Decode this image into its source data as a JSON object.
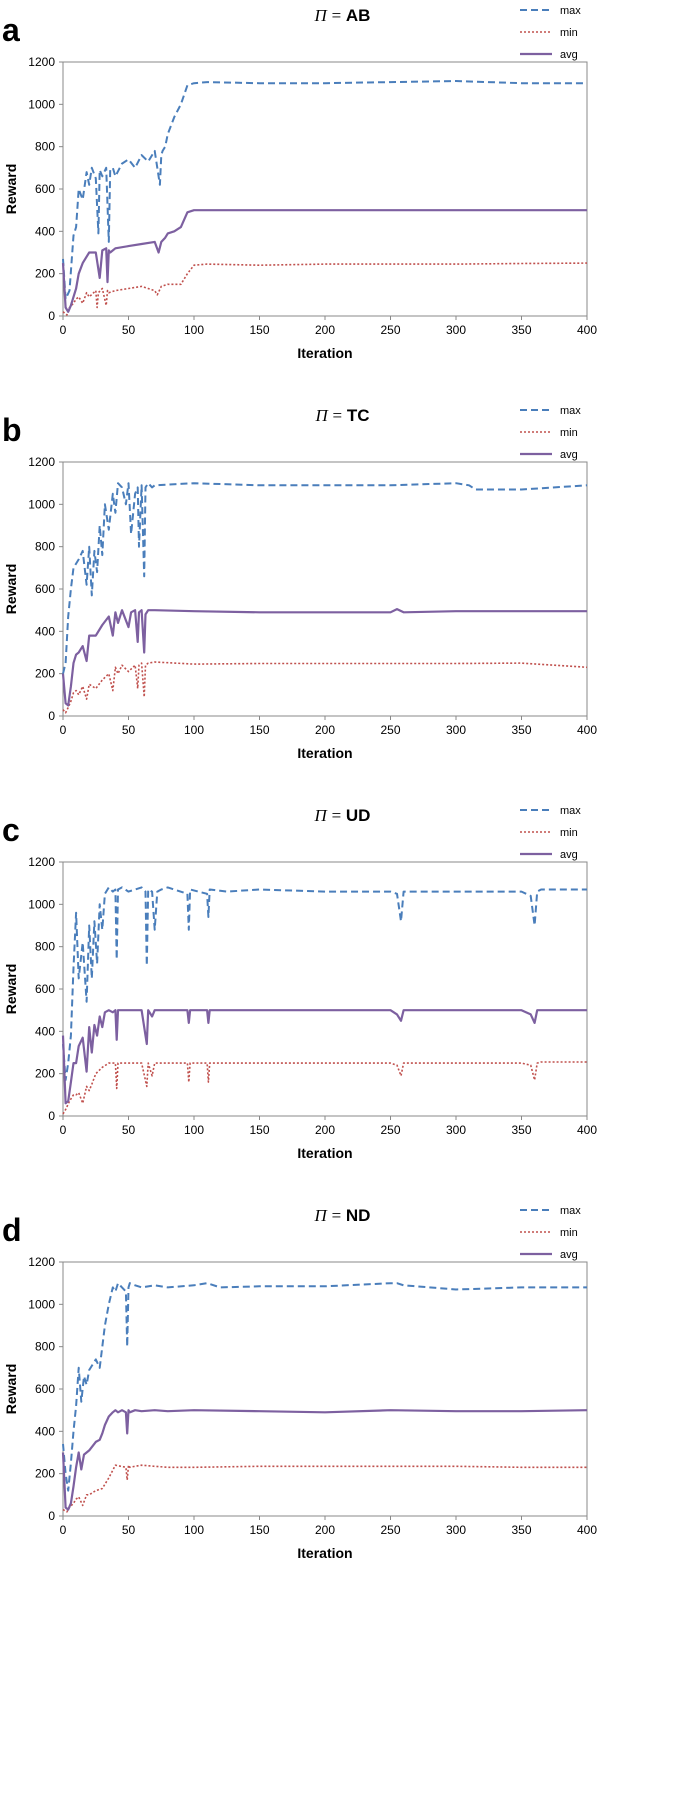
{
  "legend_labels": {
    "max": "max",
    "min": "min",
    "avg": "avg"
  },
  "colors": {
    "max": "#4a7ebb",
    "min": "#c0504d",
    "avg": "#7d60a0"
  },
  "chart_data": [
    {
      "type": "line",
      "panel": "a",
      "title_prefix": "Π",
      "title_eq": "=",
      "title_condition": "AB",
      "xlabel": "Iteration",
      "ylabel": "Reward",
      "xlim": [
        0,
        400
      ],
      "ylim": [
        0,
        1200
      ],
      "xticks": [
        0,
        50,
        100,
        150,
        200,
        250,
        300,
        350,
        400
      ],
      "yticks": [
        0,
        200,
        400,
        600,
        800,
        1000,
        1200
      ],
      "series": [
        {
          "name": "max",
          "style": "dashed",
          "x": [
            0,
            2,
            5,
            8,
            10,
            12,
            15,
            18,
            20,
            22,
            25,
            27,
            28,
            30,
            33,
            35,
            36,
            38,
            40,
            45,
            50,
            55,
            60,
            65,
            70,
            74,
            75,
            76,
            78,
            80,
            85,
            90,
            95,
            100,
            110,
            150,
            200,
            250,
            300,
            350,
            400
          ],
          "y": [
            270,
            80,
            120,
            380,
            420,
            600,
            550,
            680,
            620,
            700,
            650,
            390,
            690,
            660,
            700,
            350,
            690,
            700,
            660,
            720,
            740,
            700,
            760,
            730,
            780,
            620,
            760,
            780,
            800,
            860,
            940,
            1000,
            1090,
            1100,
            1105,
            1100,
            1100,
            1105,
            1110,
            1100,
            1100
          ]
        },
        {
          "name": "min",
          "style": "dotted",
          "x": [
            0,
            3,
            5,
            8,
            10,
            12,
            15,
            18,
            20,
            25,
            26,
            27,
            30,
            33,
            34,
            35,
            40,
            50,
            60,
            70,
            72,
            75,
            80,
            90,
            95,
            100,
            110,
            150,
            200,
            250,
            300,
            350,
            400
          ],
          "y": [
            20,
            5,
            40,
            60,
            80,
            90,
            60,
            110,
            90,
            120,
            40,
            110,
            130,
            50,
            120,
            110,
            120,
            130,
            140,
            120,
            100,
            140,
            150,
            150,
            200,
            240,
            245,
            240,
            245,
            245,
            245,
            248,
            250
          ]
        },
        {
          "name": "avg",
          "style": "solid",
          "x": [
            0,
            2,
            4,
            6,
            8,
            10,
            12,
            15,
            18,
            20,
            25,
            28,
            30,
            33,
            34,
            35,
            36,
            40,
            50,
            60,
            70,
            73,
            75,
            78,
            80,
            85,
            90,
            95,
            100,
            150,
            200,
            250,
            300,
            350,
            400
          ],
          "y": [
            250,
            40,
            20,
            50,
            90,
            130,
            200,
            250,
            280,
            300,
            300,
            180,
            310,
            320,
            160,
            310,
            300,
            320,
            330,
            340,
            350,
            300,
            350,
            370,
            390,
            400,
            420,
            490,
            500,
            500,
            500,
            500,
            500,
            500,
            500
          ]
        }
      ]
    },
    {
      "type": "line",
      "panel": "b",
      "title_prefix": "Π",
      "title_eq": "=",
      "title_condition": "TC",
      "xlabel": "Iteration",
      "ylabel": "Reward",
      "xlim": [
        0,
        400
      ],
      "ylim": [
        0,
        1200
      ],
      "xticks": [
        0,
        50,
        100,
        150,
        200,
        250,
        300,
        350,
        400
      ],
      "yticks": [
        0,
        200,
        400,
        600,
        800,
        1000,
        1200
      ],
      "series": [
        {
          "name": "max",
          "style": "dashed",
          "x": [
            0,
            2,
            4,
            6,
            8,
            10,
            12,
            15,
            18,
            20,
            22,
            24,
            26,
            28,
            30,
            32,
            35,
            38,
            40,
            42,
            45,
            48,
            50,
            52,
            55,
            57,
            58,
            60,
            62,
            63,
            65,
            68,
            70,
            100,
            150,
            200,
            250,
            300,
            310,
            315,
            350,
            400
          ],
          "y": [
            200,
            250,
            470,
            600,
            700,
            720,
            740,
            780,
            620,
            800,
            570,
            780,
            680,
            900,
            760,
            1000,
            880,
            1050,
            960,
            1100,
            1080,
            1000,
            1100,
            860,
            1050,
            1080,
            800,
            1090,
            660,
            1080,
            1100,
            1080,
            1090,
            1100,
            1090,
            1090,
            1090,
            1100,
            1090,
            1070,
            1070,
            1090
          ]
        },
        {
          "name": "min",
          "style": "dotted",
          "x": [
            0,
            2,
            4,
            6,
            8,
            10,
            12,
            15,
            18,
            20,
            25,
            30,
            35,
            38,
            40,
            42,
            45,
            50,
            55,
            57,
            58,
            60,
            62,
            63,
            65,
            70,
            100,
            150,
            200,
            250,
            300,
            350,
            400
          ],
          "y": [
            30,
            15,
            40,
            70,
            110,
            120,
            100,
            140,
            80,
            150,
            130,
            170,
            200,
            120,
            230,
            200,
            240,
            210,
            240,
            130,
            240,
            250,
            90,
            240,
            250,
            255,
            245,
            248,
            248,
            248,
            248,
            250,
            230
          ]
        },
        {
          "name": "avg",
          "style": "solid",
          "x": [
            0,
            2,
            4,
            6,
            8,
            10,
            12,
            15,
            18,
            20,
            25,
            30,
            35,
            38,
            40,
            42,
            45,
            50,
            52,
            55,
            57,
            58,
            60,
            62,
            63,
            65,
            70,
            100,
            150,
            200,
            250,
            255,
            260,
            300,
            350,
            400
          ],
          "y": [
            200,
            60,
            50,
            140,
            250,
            290,
            300,
            330,
            260,
            380,
            380,
            430,
            470,
            380,
            490,
            440,
            500,
            420,
            490,
            500,
            350,
            490,
            500,
            300,
            480,
            500,
            500,
            495,
            490,
            490,
            490,
            505,
            490,
            495,
            495,
            495
          ]
        }
      ]
    },
    {
      "type": "line",
      "panel": "c",
      "title_prefix": "Π",
      "title_eq": "=",
      "title_condition": "UD",
      "xlabel": "Iteration",
      "ylabel": "Reward",
      "xlim": [
        0,
        400
      ],
      "ylim": [
        0,
        1200
      ],
      "xticks": [
        0,
        50,
        100,
        150,
        200,
        250,
        300,
        350,
        400
      ],
      "yticks": [
        0,
        200,
        400,
        600,
        800,
        1000,
        1200
      ],
      "series": [
        {
          "name": "max",
          "style": "dashed",
          "x": [
            0,
            2,
            4,
            6,
            8,
            10,
            12,
            15,
            18,
            20,
            22,
            24,
            26,
            28,
            30,
            32,
            35,
            38,
            40,
            41,
            42,
            45,
            50,
            55,
            60,
            63,
            64,
            65,
            68,
            70,
            72,
            75,
            80,
            95,
            96,
            97,
            110,
            111,
            112,
            125,
            150,
            200,
            250,
            255,
            258,
            260,
            300,
            350,
            357,
            360,
            362,
            365,
            400
          ],
          "y": [
            340,
            170,
            250,
            380,
            700,
            960,
            650,
            820,
            540,
            900,
            650,
            920,
            720,
            1000,
            880,
            1050,
            1080,
            1060,
            1070,
            740,
            1070,
            1080,
            1060,
            1070,
            1080,
            1060,
            710,
            1070,
            1060,
            880,
            1060,
            1070,
            1080,
            1050,
            880,
            1070,
            1050,
            940,
            1070,
            1060,
            1070,
            1060,
            1060,
            1050,
            920,
            1060,
            1060,
            1060,
            1040,
            900,
            1060,
            1070,
            1070
          ]
        },
        {
          "name": "min",
          "style": "dotted",
          "x": [
            0,
            2,
            5,
            8,
            10,
            12,
            15,
            18,
            20,
            22,
            25,
            30,
            35,
            40,
            41,
            42,
            50,
            60,
            64,
            65,
            68,
            70,
            95,
            96,
            97,
            110,
            111,
            112,
            150,
            200,
            250,
            255,
            258,
            260,
            300,
            350,
            357,
            360,
            362,
            365,
            400
          ],
          "y": [
            10,
            30,
            70,
            100,
            100,
            110,
            60,
            140,
            120,
            150,
            200,
            230,
            250,
            250,
            130,
            250,
            250,
            250,
            140,
            250,
            190,
            250,
            250,
            160,
            250,
            250,
            160,
            250,
            250,
            250,
            250,
            240,
            190,
            250,
            250,
            250,
            240,
            170,
            250,
            255,
            255
          ]
        },
        {
          "name": "avg",
          "style": "solid",
          "x": [
            0,
            2,
            4,
            6,
            8,
            10,
            12,
            15,
            18,
            20,
            22,
            24,
            26,
            28,
            30,
            32,
            35,
            38,
            40,
            41,
            42,
            45,
            50,
            60,
            64,
            65,
            68,
            70,
            95,
            96,
            97,
            110,
            111,
            112,
            150,
            200,
            250,
            255,
            258,
            260,
            300,
            350,
            357,
            360,
            362,
            365,
            400
          ],
          "y": [
            380,
            60,
            70,
            160,
            250,
            250,
            330,
            370,
            210,
            420,
            300,
            430,
            380,
            470,
            420,
            490,
            500,
            490,
            500,
            360,
            500,
            500,
            500,
            500,
            340,
            500,
            470,
            500,
            500,
            440,
            500,
            500,
            440,
            500,
            500,
            500,
            500,
            480,
            450,
            500,
            500,
            500,
            480,
            440,
            500,
            500,
            500
          ]
        }
      ]
    },
    {
      "type": "line",
      "panel": "d",
      "title_prefix": "Π",
      "title_eq": "=",
      "title_condition": "ND",
      "xlabel": "Iteration",
      "ylabel": "Reward",
      "xlim": [
        0,
        400
      ],
      "ylim": [
        0,
        1200
      ],
      "xticks": [
        0,
        50,
        100,
        150,
        200,
        250,
        300,
        350,
        400
      ],
      "yticks": [
        0,
        200,
        400,
        600,
        800,
        1000,
        1200
      ],
      "series": [
        {
          "name": "max",
          "style": "dashed",
          "x": [
            0,
            2,
            4,
            6,
            8,
            10,
            12,
            14,
            16,
            18,
            20,
            25,
            28,
            30,
            32,
            35,
            38,
            40,
            42,
            45,
            48,
            49,
            50,
            51,
            55,
            60,
            70,
            80,
            100,
            110,
            120,
            150,
            200,
            250,
            255,
            260,
            300,
            350,
            400
          ],
          "y": [
            340,
            200,
            120,
            250,
            400,
            520,
            700,
            540,
            660,
            620,
            690,
            740,
            700,
            800,
            900,
            1000,
            1080,
            1060,
            1100,
            1080,
            1060,
            800,
            1080,
            1100,
            1090,
            1080,
            1090,
            1080,
            1090,
            1100,
            1080,
            1085,
            1085,
            1100,
            1100,
            1090,
            1070,
            1080,
            1080
          ]
        },
        {
          "name": "min",
          "style": "dotted",
          "x": [
            0,
            3,
            5,
            8,
            10,
            12,
            15,
            18,
            20,
            25,
            30,
            35,
            40,
            48,
            49,
            50,
            51,
            55,
            60,
            70,
            80,
            100,
            150,
            200,
            250,
            300,
            350,
            400
          ],
          "y": [
            30,
            20,
            40,
            60,
            80,
            90,
            50,
            100,
            100,
            120,
            130,
            180,
            240,
            230,
            170,
            240,
            230,
            235,
            240,
            235,
            230,
            230,
            235,
            235,
            235,
            235,
            230,
            230
          ]
        },
        {
          "name": "avg",
          "style": "solid",
          "x": [
            0,
            2,
            4,
            6,
            8,
            10,
            12,
            14,
            16,
            18,
            20,
            25,
            28,
            30,
            32,
            35,
            38,
            40,
            42,
            45,
            48,
            49,
            50,
            51,
            55,
            60,
            70,
            80,
            100,
            150,
            200,
            250,
            300,
            350,
            400
          ],
          "y": [
            300,
            40,
            30,
            60,
            140,
            230,
            300,
            220,
            290,
            300,
            310,
            350,
            360,
            390,
            430,
            470,
            490,
            500,
            490,
            500,
            490,
            390,
            500,
            490,
            500,
            495,
            500,
            495,
            500,
            495,
            490,
            500,
            495,
            495,
            500
          ]
        }
      ]
    }
  ]
}
